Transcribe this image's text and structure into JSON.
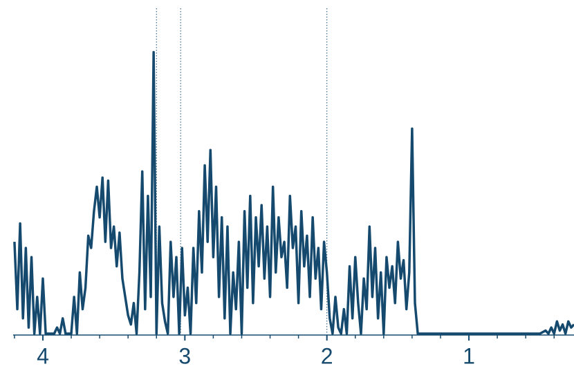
{
  "chart_data": {
    "type": "line",
    "color": "#154a6e",
    "x": [
      4.2,
      4.18,
      4.16,
      4.14,
      4.12,
      4.1,
      4.08,
      4.06,
      4.04,
      4.02,
      4.0,
      3.98,
      3.96,
      3.94,
      3.92,
      3.9,
      3.88,
      3.86,
      3.84,
      3.82,
      3.8,
      3.78,
      3.76,
      3.74,
      3.72,
      3.7,
      3.68,
      3.66,
      3.64,
      3.62,
      3.6,
      3.58,
      3.56,
      3.54,
      3.52,
      3.5,
      3.48,
      3.46,
      3.44,
      3.42,
      3.4,
      3.38,
      3.36,
      3.34,
      3.32,
      3.3,
      3.28,
      3.26,
      3.24,
      3.22,
      3.2,
      3.18,
      3.16,
      3.14,
      3.12,
      3.1,
      3.08,
      3.06,
      3.04,
      3.02,
      3.0,
      2.98,
      2.96,
      2.94,
      2.92,
      2.9,
      2.88,
      2.86,
      2.84,
      2.82,
      2.8,
      2.78,
      2.76,
      2.74,
      2.72,
      2.7,
      2.68,
      2.66,
      2.64,
      2.62,
      2.6,
      2.58,
      2.56,
      2.54,
      2.52,
      2.5,
      2.48,
      2.46,
      2.44,
      2.42,
      2.4,
      2.38,
      2.36,
      2.34,
      2.32,
      2.3,
      2.28,
      2.26,
      2.24,
      2.22,
      2.2,
      2.18,
      2.16,
      2.14,
      2.12,
      2.1,
      2.08,
      2.06,
      2.04,
      2.02,
      2.0,
      1.98,
      1.96,
      1.94,
      1.92,
      1.9,
      1.88,
      1.86,
      1.84,
      1.82,
      1.8,
      1.78,
      1.76,
      1.74,
      1.72,
      1.7,
      1.68,
      1.66,
      1.64,
      1.62,
      1.6,
      1.58,
      1.56,
      1.54,
      1.52,
      1.5,
      1.48,
      1.46,
      1.44,
      1.42,
      1.4,
      1.38,
      1.36,
      1.34,
      1.2,
      1.0,
      0.8,
      0.6,
      0.5,
      0.46,
      0.44,
      0.42,
      0.4,
      0.38,
      0.36,
      0.34,
      0.32,
      0.3,
      0.28,
      0.26
    ],
    "values": [
      30,
      8,
      36,
      5,
      28,
      2,
      25,
      0,
      12,
      0,
      18,
      0,
      0,
      0,
      0,
      2,
      0,
      5,
      0,
      0,
      0,
      12,
      0,
      20,
      8,
      15,
      32,
      28,
      40,
      48,
      38,
      51,
      30,
      50,
      28,
      35,
      22,
      33,
      18,
      12,
      6,
      3,
      10,
      0,
      20,
      53,
      8,
      45,
      12,
      92,
      0,
      35,
      10,
      4,
      0,
      30,
      12,
      25,
      0,
      28,
      6,
      15,
      0,
      28,
      10,
      40,
      20,
      55,
      30,
      60,
      25,
      48,
      12,
      38,
      5,
      35,
      0,
      20,
      8,
      30,
      0,
      40,
      15,
      45,
      10,
      38,
      22,
      42,
      18,
      35,
      12,
      48,
      20,
      38,
      25,
      30,
      15,
      45,
      28,
      35,
      10,
      40,
      22,
      32,
      12,
      38,
      18,
      28,
      8,
      30,
      20,
      5,
      0,
      12,
      2,
      0,
      8,
      0,
      22,
      5,
      25,
      10,
      0,
      18,
      8,
      35,
      12,
      28,
      5,
      20,
      0,
      25,
      15,
      22,
      10,
      30,
      18,
      24,
      8,
      20,
      67,
      10,
      0,
      0,
      0,
      0,
      0,
      0,
      0,
      1,
      0,
      2,
      0,
      4,
      1,
      3,
      0,
      4,
      2,
      3
    ],
    "xlim": [
      4.2,
      0.26
    ],
    "ylim": [
      0,
      100
    ],
    "xticks": [
      4,
      3,
      2,
      1
    ],
    "xminor_ticks": [
      4.2,
      3.8,
      3.6,
      3.4,
      3.2,
      2.8,
      2.6,
      2.4,
      2.2,
      1.8,
      1.6,
      1.4,
      1.2,
      0.8,
      0.6,
      0.4
    ],
    "vlines": [
      3.2,
      3.03,
      2.0
    ]
  }
}
